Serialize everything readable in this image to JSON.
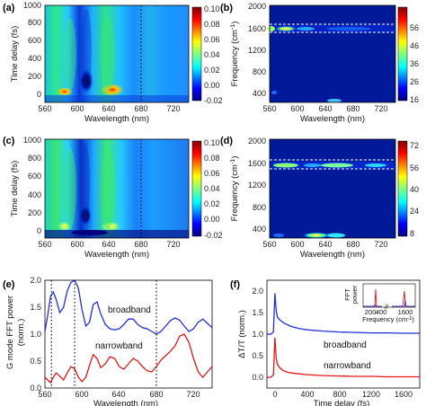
{
  "chart_data": [
    {
      "panel": "(a)",
      "type": "heatmap",
      "xlabel": "Wavelength (nm)",
      "ylabel": "Time delay (fs)",
      "xlim": [
        560,
        740
      ],
      "ylim": [
        -50,
        1000
      ],
      "xticks": [
        560,
        600,
        640,
        680,
        720
      ],
      "yticks": [
        0,
        200,
        400,
        600,
        800,
        1000
      ],
      "colorbar": {
        "ticks": [
          "0.10",
          "0.08",
          "0.06",
          "0.04",
          "0.02",
          "0.00",
          "-0.02"
        ],
        "range": [
          -0.02,
          0.1
        ]
      },
      "dashed_line_x": 680
    },
    {
      "panel": "(b)",
      "type": "heatmap",
      "xlabel": "Wavelength (nm)",
      "ylabel": "Frequency (cm-1)",
      "xlim": [
        560,
        740
      ],
      "ylim": [
        200,
        2000
      ],
      "xticks": [
        560,
        600,
        640,
        680,
        720
      ],
      "yticks": [
        400,
        800,
        1200,
        1600,
        2000
      ],
      "colorbar": {
        "ticks": [
          "56",
          "46",
          "36",
          "26",
          "16"
        ],
        "range": [
          10,
          62
        ]
      },
      "dashed_lines_y": [
        1520,
        1660
      ]
    },
    {
      "panel": "(c)",
      "type": "heatmap",
      "xlabel": "Wavelength (nm)",
      "ylabel": "Time delay (fs)",
      "xlim": [
        560,
        740
      ],
      "ylim": [
        -50,
        1000
      ],
      "xticks": [
        560,
        600,
        640,
        680,
        720
      ],
      "yticks": [
        0,
        200,
        400,
        600,
        800,
        1000
      ],
      "colorbar": {
        "ticks": [
          "0.10",
          "0.08",
          "0.06",
          "0.04",
          "0.02",
          "0.00",
          "-0.02"
        ],
        "range": [
          -0.02,
          0.1
        ]
      },
      "dashed_line_x": 680
    },
    {
      "panel": "(d)",
      "type": "heatmap",
      "xlabel": "Wavelength (nm)",
      "ylabel": "Frequency (cm-1)",
      "xlim": [
        560,
        740
      ],
      "ylim": [
        200,
        2000
      ],
      "xticks": [
        560,
        600,
        640,
        680,
        720
      ],
      "yticks": [
        400,
        800,
        1200,
        1600,
        2000
      ],
      "colorbar": {
        "ticks": [
          "72",
          "56",
          "40",
          "24",
          "8"
        ],
        "range": [
          4,
          76
        ]
      },
      "dashed_lines_y": [
        1520,
        1660
      ]
    },
    {
      "panel": "(e)",
      "type": "line",
      "xlabel": "Wavelength (nm)",
      "ylabel": "G mode FFT power (norm.)",
      "xlim": [
        560,
        740
      ],
      "ylim": [
        0,
        2.0
      ],
      "xticks": [
        560,
        600,
        640,
        680,
        720
      ],
      "yticks": [
        "0.0",
        "0.5",
        "1.0",
        "1.5",
        "2.0"
      ],
      "dotted_lines_x": [
        567,
        592,
        680
      ],
      "series": [
        {
          "name": "broadband",
          "color": "#1f2fd8",
          "x": [
            560,
            563,
            566,
            569,
            572,
            576,
            580,
            584,
            588,
            592,
            596,
            600,
            604,
            608,
            612,
            616,
            620,
            625,
            630,
            635,
            640,
            645,
            650,
            655,
            660,
            665,
            670,
            675,
            680,
            685,
            690,
            695,
            700,
            705,
            710,
            715,
            720,
            725,
            730,
            735,
            740
          ],
          "y": [
            1.05,
            1.35,
            1.7,
            1.78,
            1.65,
            1.4,
            1.5,
            1.8,
            1.96,
            2.0,
            1.85,
            1.45,
            1.15,
            1.22,
            1.55,
            1.6,
            1.38,
            1.18,
            1.1,
            1.08,
            1.1,
            1.18,
            1.28,
            1.28,
            1.18,
            1.12,
            1.1,
            1.05,
            1.0,
            1.05,
            1.15,
            1.25,
            1.3,
            1.26,
            1.15,
            1.05,
            1.1,
            1.22,
            1.28,
            1.2,
            1.12
          ]
        },
        {
          "name": "narrowband",
          "color": "#e01818",
          "x": [
            560,
            563,
            566,
            569,
            572,
            576,
            580,
            584,
            588,
            592,
            596,
            600,
            604,
            608,
            612,
            616,
            620,
            625,
            630,
            635,
            640,
            645,
            650,
            655,
            660,
            665,
            670,
            675,
            680,
            685,
            690,
            695,
            700,
            705,
            710,
            715,
            720,
            725,
            730,
            735,
            740
          ],
          "y": [
            0.2,
            0.15,
            0.1,
            0.2,
            0.28,
            0.22,
            0.15,
            0.28,
            0.4,
            0.36,
            0.2,
            0.12,
            0.2,
            0.42,
            0.62,
            0.55,
            0.38,
            0.45,
            0.58,
            0.55,
            0.4,
            0.35,
            0.45,
            0.55,
            0.5,
            0.4,
            0.32,
            0.3,
            0.4,
            0.52,
            0.6,
            0.68,
            0.78,
            0.96,
            1.0,
            0.85,
            0.55,
            0.3,
            0.2,
            0.3,
            0.4
          ]
        }
      ],
      "annotations": [
        "broadband",
        "narrowband"
      ]
    },
    {
      "panel": "(f)",
      "type": "line",
      "xlabel": "Time delay (fs)",
      "ylabel": "ΔT/T (norm.)",
      "xlim": [
        -100,
        1800
      ],
      "ylim": [
        -0.25,
        2.25
      ],
      "xticks": [
        0,
        400,
        800,
        1200,
        1600
      ],
      "yticks": [
        "0.0",
        "0.5",
        "1.0",
        "1.5",
        "2.0"
      ],
      "series": [
        {
          "name": "broadband",
          "color": "#1f2fd8",
          "x": [
            -100,
            -50,
            -20,
            0,
            15,
            30,
            60,
            100,
            150,
            200,
            300,
            400,
            600,
            800,
            1000,
            1200,
            1400,
            1600,
            1800
          ],
          "y": [
            1.0,
            1.0,
            1.05,
            1.95,
            1.55,
            1.4,
            1.33,
            1.27,
            1.22,
            1.18,
            1.13,
            1.1,
            1.07,
            1.05,
            1.04,
            1.03,
            1.03,
            1.02,
            1.02
          ]
        },
        {
          "name": "narrowband",
          "color": "#e01818",
          "x": [
            -100,
            -50,
            -20,
            0,
            15,
            30,
            60,
            100,
            150,
            200,
            300,
            400,
            600,
            800,
            1000,
            1200,
            1400,
            1600,
            1800
          ],
          "y": [
            0.0,
            0.0,
            0.05,
            0.92,
            0.45,
            0.3,
            0.22,
            0.16,
            0.12,
            0.1,
            0.08,
            0.06,
            0.04,
            0.03,
            0.02,
            0.02,
            0.01,
            0.01,
            0.01
          ]
        }
      ],
      "annotations": [
        "broadband",
        "narrowband"
      ],
      "inset": {
        "xlabel": "Frequency (cm-1)",
        "ylabel": "FFT power",
        "xticks": [
          "200",
          "400",
          "1600"
        ],
        "break": "//"
      }
    }
  ]
}
